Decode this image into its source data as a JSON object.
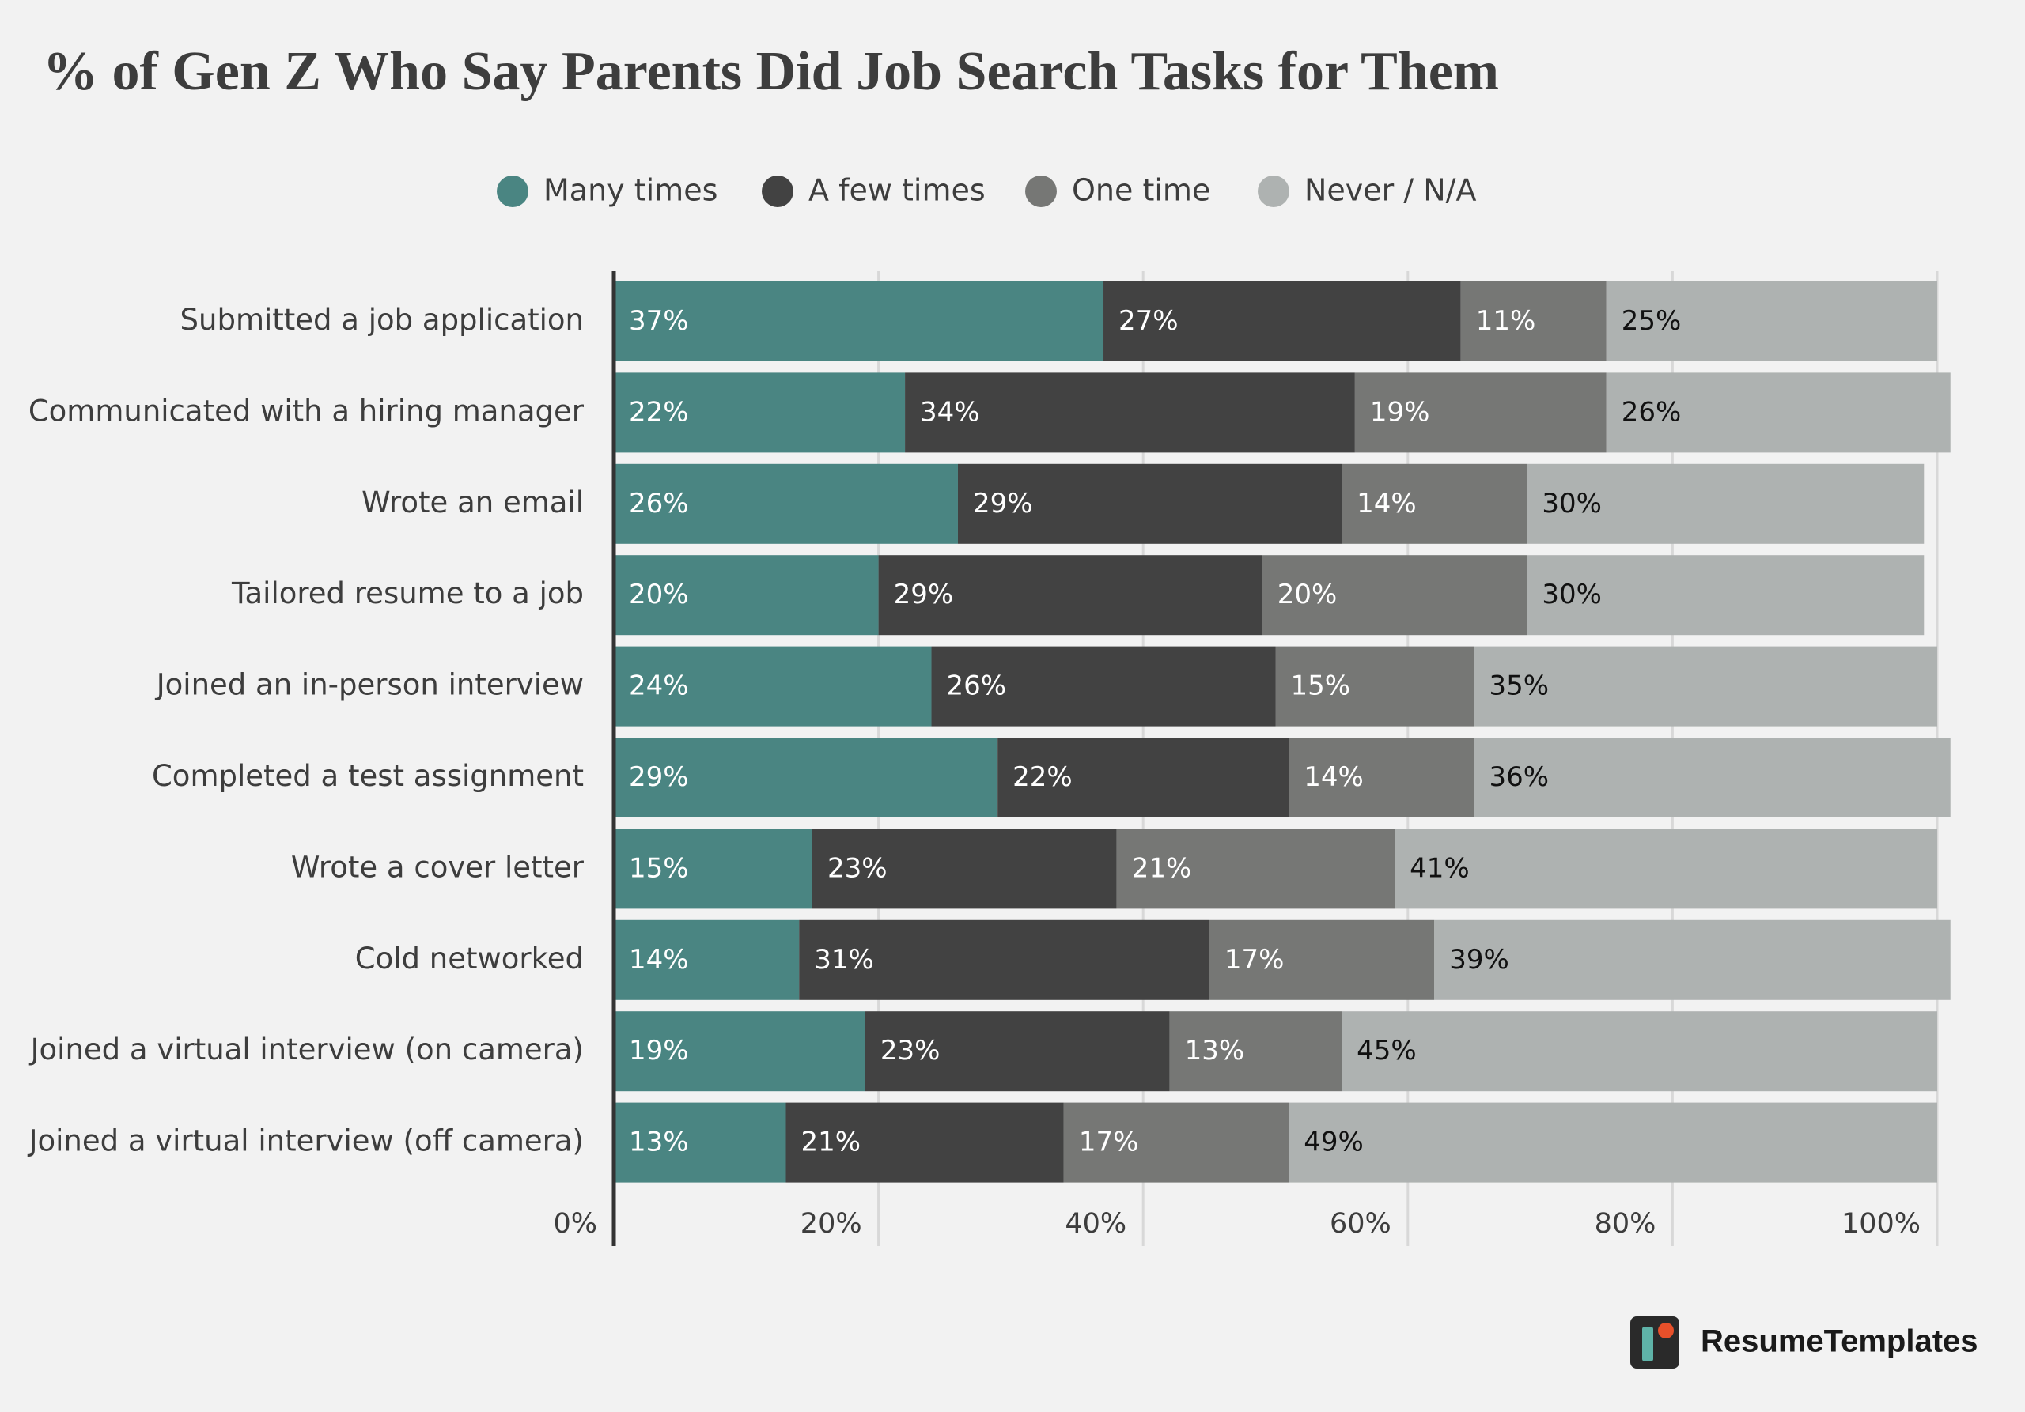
{
  "chart_data": {
    "type": "stacked-bar-horizontal",
    "title": "% of Gen Z Who Say Parents Did Job Search Tasks for Them",
    "categories": [
      "Submitted a job application",
      "Communicated with a hiring manager",
      "Wrote an email",
      "Tailored resume to a job",
      "Joined an in-person interview",
      "Completed a test assignment",
      "Wrote a cover letter",
      "Cold networked",
      "Joined a virtual interview (on camera)",
      "Joined a virtual interview (off camera)"
    ],
    "series": [
      {
        "name": "Many times",
        "color": "#4a8582",
        "label_color": "#ffffff",
        "values": [
          37,
          22,
          26,
          20,
          24,
          29,
          15,
          14,
          19,
          13
        ],
        "value_labels": [
          "37%",
          "22%",
          "26%",
          "20%",
          "24%",
          "29%",
          "15%",
          "14%",
          "19%",
          "13%"
        ]
      },
      {
        "name": "A few times",
        "color": "#424242",
        "label_color": "#ffffff",
        "values": [
          27,
          34,
          29,
          29,
          26,
          22,
          23,
          31,
          23,
          21
        ],
        "value_labels": [
          "27%",
          "34%",
          "29%",
          "29%",
          "26%",
          "22%",
          "23%",
          "31%",
          "23%",
          "21%"
        ]
      },
      {
        "name": "One time",
        "color": "#767775",
        "label_color": "#ffffff",
        "values": [
          11,
          19,
          14,
          20,
          15,
          14,
          21,
          17,
          13,
          17
        ],
        "value_labels": [
          "11%",
          "19%",
          "14%",
          "20%",
          "15%",
          "14%",
          "21%",
          "17%",
          "13%",
          "17%"
        ]
      },
      {
        "name": "Never / N/A",
        "color": "#aeb2b1",
        "label_color": "#111111",
        "values": [
          25,
          26,
          30,
          30,
          35,
          36,
          41,
          39,
          45,
          49
        ],
        "value_labels": [
          "25%",
          "26%",
          "30%",
          "30%",
          "35%",
          "36%",
          "41%",
          "39%",
          "45%",
          "49%"
        ]
      }
    ],
    "xlim": [
      0,
      100
    ],
    "xticks": [
      {
        "value": 0,
        "label": "0%"
      },
      {
        "value": 20,
        "label": "20%"
      },
      {
        "value": 40,
        "label": "40%"
      },
      {
        "value": 60,
        "label": "60%"
      },
      {
        "value": 80,
        "label": "80%"
      },
      {
        "value": 100,
        "label": "100%"
      }
    ],
    "grid": true,
    "legend": "top"
  },
  "brand": "ResumeTemplates"
}
